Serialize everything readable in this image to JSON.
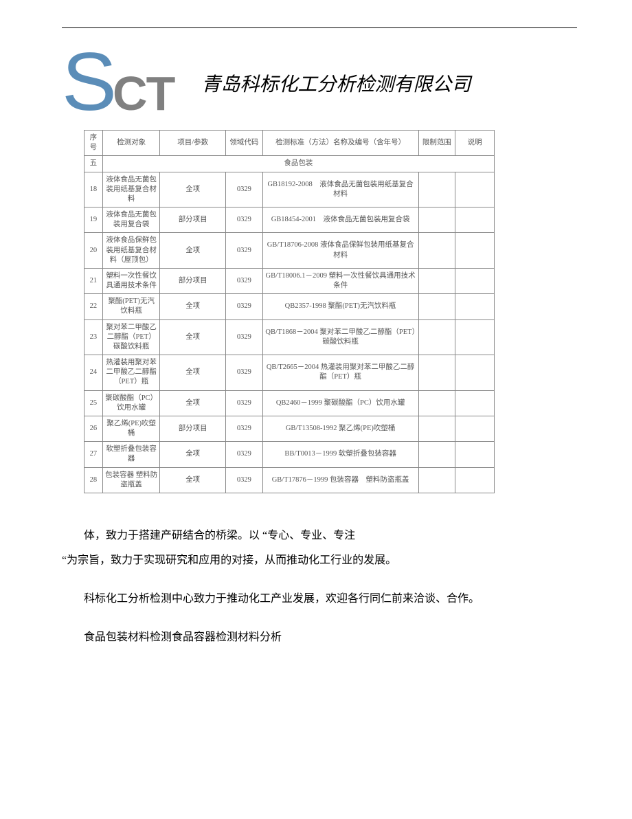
{
  "header": {
    "logo_s": "S",
    "logo_ct": "CT",
    "company": "青岛科标化工分析检测有限公司"
  },
  "table": {
    "columns": {
      "seq": "序号",
      "obj": "检测对象",
      "param": "项目/参数",
      "code": "领域代码",
      "std": "检测标准（方法）名称及编号（含年号）",
      "limit": "限制范围",
      "note": "说明"
    },
    "section": {
      "seq": "五",
      "label": "食品包装"
    },
    "rows": [
      {
        "seq": "18",
        "obj": "液体食品无菌包装用纸基复合材料",
        "param": "全项",
        "code": "0329",
        "std": "GB18192-2008　液体食品无菌包装用纸基复合材料",
        "limit": "",
        "note": ""
      },
      {
        "seq": "19",
        "obj": "液体食品无菌包装用复合袋",
        "param": "部分项目",
        "code": "0329",
        "std": "GB18454-2001　液体食品无菌包装用复合袋",
        "limit": "",
        "note": ""
      },
      {
        "seq": "20",
        "obj": "液体食品保鲜包装用纸基复合材料（屋顶包）",
        "param": "全项",
        "code": "0329",
        "std": "GB/T18706-2008 液体食品保鲜包装用纸基复合材料",
        "limit": "",
        "note": ""
      },
      {
        "seq": "21",
        "obj": "塑料一次性餐饮具通用技术条件",
        "param": "部分项目",
        "code": "0329",
        "std": "GB/T18006.1－2009 塑料一次性餐饮具通用技术条件",
        "limit": "",
        "note": ""
      },
      {
        "seq": "22",
        "obj": "聚酯(PET)无汽饮料瓶",
        "param": "全项",
        "code": "0329",
        "std": "QB2357-1998 聚酯(PET)无汽饮料瓶",
        "limit": "",
        "note": ""
      },
      {
        "seq": "23",
        "obj": "聚对苯二甲酸乙二醇酯（PET）碳酸饮料瓶",
        "param": "全项",
        "code": "0329",
        "std": "QB/T1868－2004 聚对苯二甲酸乙二醇酯（PET）碳酸饮料瓶",
        "limit": "",
        "note": ""
      },
      {
        "seq": "24",
        "obj": "热灌装用聚对苯二甲酸乙二醇酯（PET）瓶",
        "param": "全项",
        "code": "0329",
        "std": "QB/T2665－2004 热灌装用聚对苯二甲酸乙二醇酯（PET）瓶",
        "limit": "",
        "note": ""
      },
      {
        "seq": "25",
        "obj": "聚碳酸酯（PC）饮用水罐",
        "param": "全项",
        "code": "0329",
        "std": "QB2460－1999 聚碳酸酯（PC）饮用水罐",
        "limit": "",
        "note": ""
      },
      {
        "seq": "26",
        "obj": "聚乙烯(PE)吹塑桶",
        "param": "部分项目",
        "code": "0329",
        "std": "GB/T13508-1992 聚乙烯(PE)吹塑桶",
        "limit": "",
        "note": ""
      },
      {
        "seq": "27",
        "obj": "软塑折叠包装容器",
        "param": "全项",
        "code": "0329",
        "std": "BB/T0013－1999 软塑折叠包装容器",
        "limit": "",
        "note": ""
      },
      {
        "seq": "28",
        "obj": "包装容器 塑料防盗瓶盖",
        "param": "全项",
        "code": "0329",
        "std": "GB/T17876－1999 包装容器　塑料防盗瓶盖",
        "limit": "",
        "note": ""
      }
    ]
  },
  "paragraphs": {
    "p1a": "体，致力于搭建产研结合的桥梁。以 “专心、专业、专注",
    "p1b": "“为宗旨，致力于实现研究和应用的对接，从而推动化工行业的发展。",
    "p2": "科标化工分析检测中心致力于推动化工产业发展，欢迎各行同仁前来洽谈、合作。",
    "p3": "食品包装材料检测食品容器检测材料分析"
  }
}
